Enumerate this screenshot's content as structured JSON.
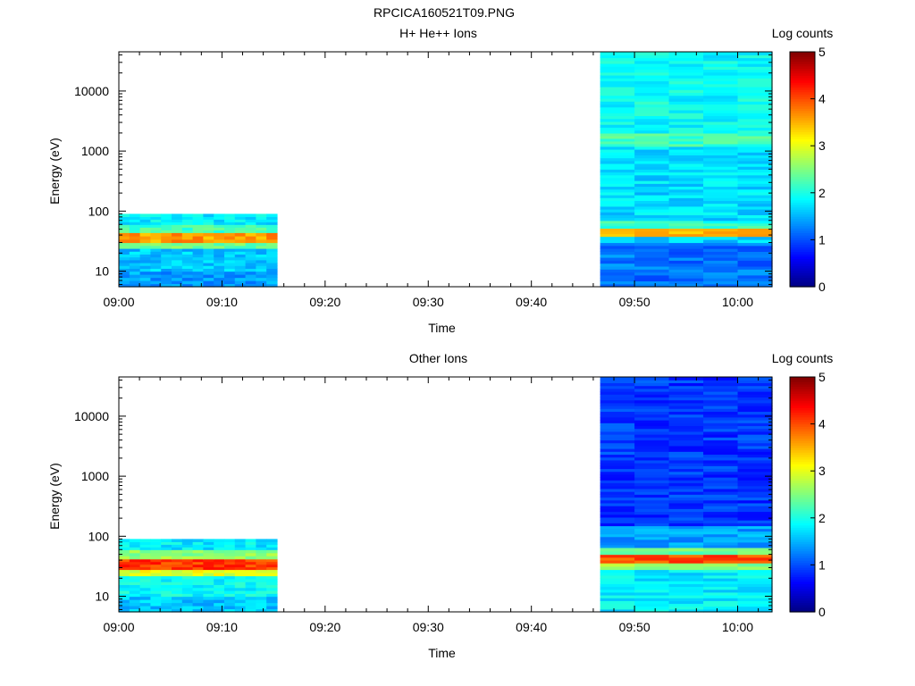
{
  "figure": {
    "title": "RPCICA160521T09.PNG"
  },
  "chart_data": [
    {
      "type": "heatmap",
      "title": "H+ He++ Ions",
      "xlabel": "Time",
      "ylabel": "Energy (eV)",
      "x_ticks": [
        "09:00",
        "09:10",
        "09:20",
        "09:30",
        "09:40",
        "09:50",
        "10:00"
      ],
      "y_ticks": [
        "10",
        "100",
        "1000",
        "10000"
      ],
      "y_scale": "log",
      "ylim": [
        5.5,
        45000
      ],
      "colorbar": {
        "label": "Log counts",
        "ticks": [
          "0",
          "1",
          "2",
          "3",
          "4",
          "5"
        ],
        "range": [
          0,
          5
        ]
      },
      "segments": [
        {
          "x_start": "09:00",
          "x_end": "09:15:20",
          "energy_range_eV": [
            5.5,
            90
          ],
          "bands": [
            {
              "energy_eV": [
                5.5,
                10
              ],
              "log_counts": 1.4
            },
            {
              "energy_eV": [
                10,
                24
              ],
              "log_counts": 1.6
            },
            {
              "energy_eV": [
                24,
                30
              ],
              "log_counts": 2.4
            },
            {
              "energy_eV": [
                30,
                44
              ],
              "log_counts": 3.6
            },
            {
              "energy_eV": [
                44,
                60
              ],
              "log_counts": 2.2
            },
            {
              "energy_eV": [
                60,
                90
              ],
              "log_counts": 1.8
            }
          ]
        },
        {
          "x_start": "09:46:40",
          "x_end": "10:03:20",
          "energy_range_eV": [
            5.5,
            45000
          ],
          "bands": [
            {
              "energy_eV": [
                5.5,
                30
              ],
              "log_counts": 1.2
            },
            {
              "energy_eV": [
                30,
                38
              ],
              "log_counts": 1.6
            },
            {
              "energy_eV": [
                38,
                52
              ],
              "log_counts": 3.5
            },
            {
              "energy_eV": [
                52,
                70
              ],
              "log_counts": 2.1
            },
            {
              "energy_eV": [
                70,
                1200
              ],
              "log_counts": 1.7
            },
            {
              "energy_eV": [
                1200,
                2000
              ],
              "log_counts": 2.2
            },
            {
              "energy_eV": [
                2000,
                45000
              ],
              "log_counts": 1.9
            }
          ]
        }
      ]
    },
    {
      "type": "heatmap",
      "title": "Other Ions",
      "xlabel": "Time",
      "ylabel": "Energy (eV)",
      "x_ticks": [
        "09:00",
        "09:10",
        "09:20",
        "09:30",
        "09:40",
        "09:50",
        "10:00"
      ],
      "y_ticks": [
        "10",
        "100",
        "1000",
        "10000"
      ],
      "y_scale": "log",
      "ylim": [
        5.5,
        45000
      ],
      "colorbar": {
        "label": "Log counts",
        "ticks": [
          "0",
          "1",
          "2",
          "3",
          "4",
          "5"
        ],
        "range": [
          0,
          5
        ]
      },
      "segments": [
        {
          "x_start": "09:00",
          "x_end": "09:15:20",
          "energy_range_eV": [
            5.5,
            90
          ],
          "bands": [
            {
              "energy_eV": [
                5.5,
                10
              ],
              "log_counts": 1.6
            },
            {
              "energy_eV": [
                10,
                22
              ],
              "log_counts": 1.9
            },
            {
              "energy_eV": [
                22,
                28
              ],
              "log_counts": 3.0
            },
            {
              "energy_eV": [
                28,
                42
              ],
              "log_counts": 4.1
            },
            {
              "energy_eV": [
                42,
                60
              ],
              "log_counts": 2.6
            },
            {
              "energy_eV": [
                60,
                90
              ],
              "log_counts": 1.8
            }
          ]
        },
        {
          "x_start": "09:46:40",
          "x_end": "10:03:20",
          "energy_range_eV": [
            5.5,
            45000
          ],
          "bands": [
            {
              "energy_eV": [
                5.5,
                28
              ],
              "log_counts": 1.8
            },
            {
              "energy_eV": [
                28,
                36
              ],
              "log_counts": 2.6
            },
            {
              "energy_eV": [
                36,
                50
              ],
              "log_counts": 4.0
            },
            {
              "energy_eV": [
                50,
                65
              ],
              "log_counts": 2.4
            },
            {
              "energy_eV": [
                65,
                150
              ],
              "log_counts": 1.4
            },
            {
              "energy_eV": [
                150,
                45000
              ],
              "log_counts": 0.9
            }
          ]
        }
      ]
    }
  ]
}
